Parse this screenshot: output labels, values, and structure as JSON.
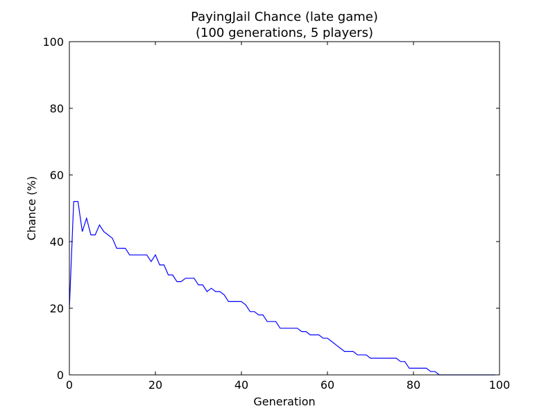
{
  "chart_data": {
    "type": "line",
    "title": "PayingJail Chance (late game)",
    "subtitle": "(100 generations, 5 players)",
    "xlabel": "Generation",
    "ylabel": "Chance (%)",
    "xlim": [
      0,
      100
    ],
    "ylim": [
      0,
      100
    ],
    "xticks": [
      "0",
      "20",
      "40",
      "60",
      "80",
      "100"
    ],
    "yticks": [
      "0",
      "20",
      "40",
      "60",
      "80",
      "100"
    ],
    "grid": false,
    "legend": "none",
    "series": [
      {
        "color": "#0000ff",
        "x": [
          0,
          1,
          2,
          3,
          4,
          5,
          6,
          7,
          8,
          9,
          10,
          11,
          12,
          13,
          14,
          15,
          16,
          17,
          18,
          19,
          20,
          21,
          22,
          23,
          24,
          25,
          26,
          27,
          28,
          29,
          30,
          31,
          32,
          33,
          34,
          35,
          36,
          37,
          38,
          39,
          40,
          41,
          42,
          43,
          44,
          45,
          46,
          47,
          48,
          49,
          50,
          51,
          52,
          53,
          54,
          55,
          56,
          57,
          58,
          59,
          60,
          61,
          62,
          63,
          64,
          65,
          66,
          67,
          68,
          69,
          70,
          71,
          72,
          73,
          74,
          75,
          76,
          77,
          78,
          79,
          80,
          81,
          82,
          83,
          84,
          85,
          86,
          87,
          88,
          89,
          90,
          91,
          92,
          93,
          94,
          95,
          96,
          97,
          98,
          99
        ],
        "y": [
          20,
          52,
          52,
          43,
          47,
          42,
          42,
          45,
          43,
          42,
          41,
          38,
          38,
          38,
          36,
          36,
          36,
          36,
          36,
          34,
          36,
          33,
          33,
          30,
          30,
          28,
          28,
          29,
          29,
          29,
          27,
          27,
          25,
          26,
          25,
          25,
          24,
          22,
          22,
          22,
          22,
          21,
          19,
          19,
          18,
          18,
          16,
          16,
          16,
          14,
          14,
          14,
          14,
          14,
          13,
          13,
          12,
          12,
          12,
          11,
          11,
          10,
          9,
          8,
          7,
          7,
          7,
          6,
          6,
          6,
          5,
          5,
          5,
          5,
          5,
          5,
          5,
          4,
          4,
          2,
          2,
          2,
          2,
          2,
          1,
          1,
          0,
          0,
          0,
          0,
          0,
          0,
          0,
          0,
          0,
          0,
          0,
          0,
          0,
          0
        ]
      }
    ]
  }
}
